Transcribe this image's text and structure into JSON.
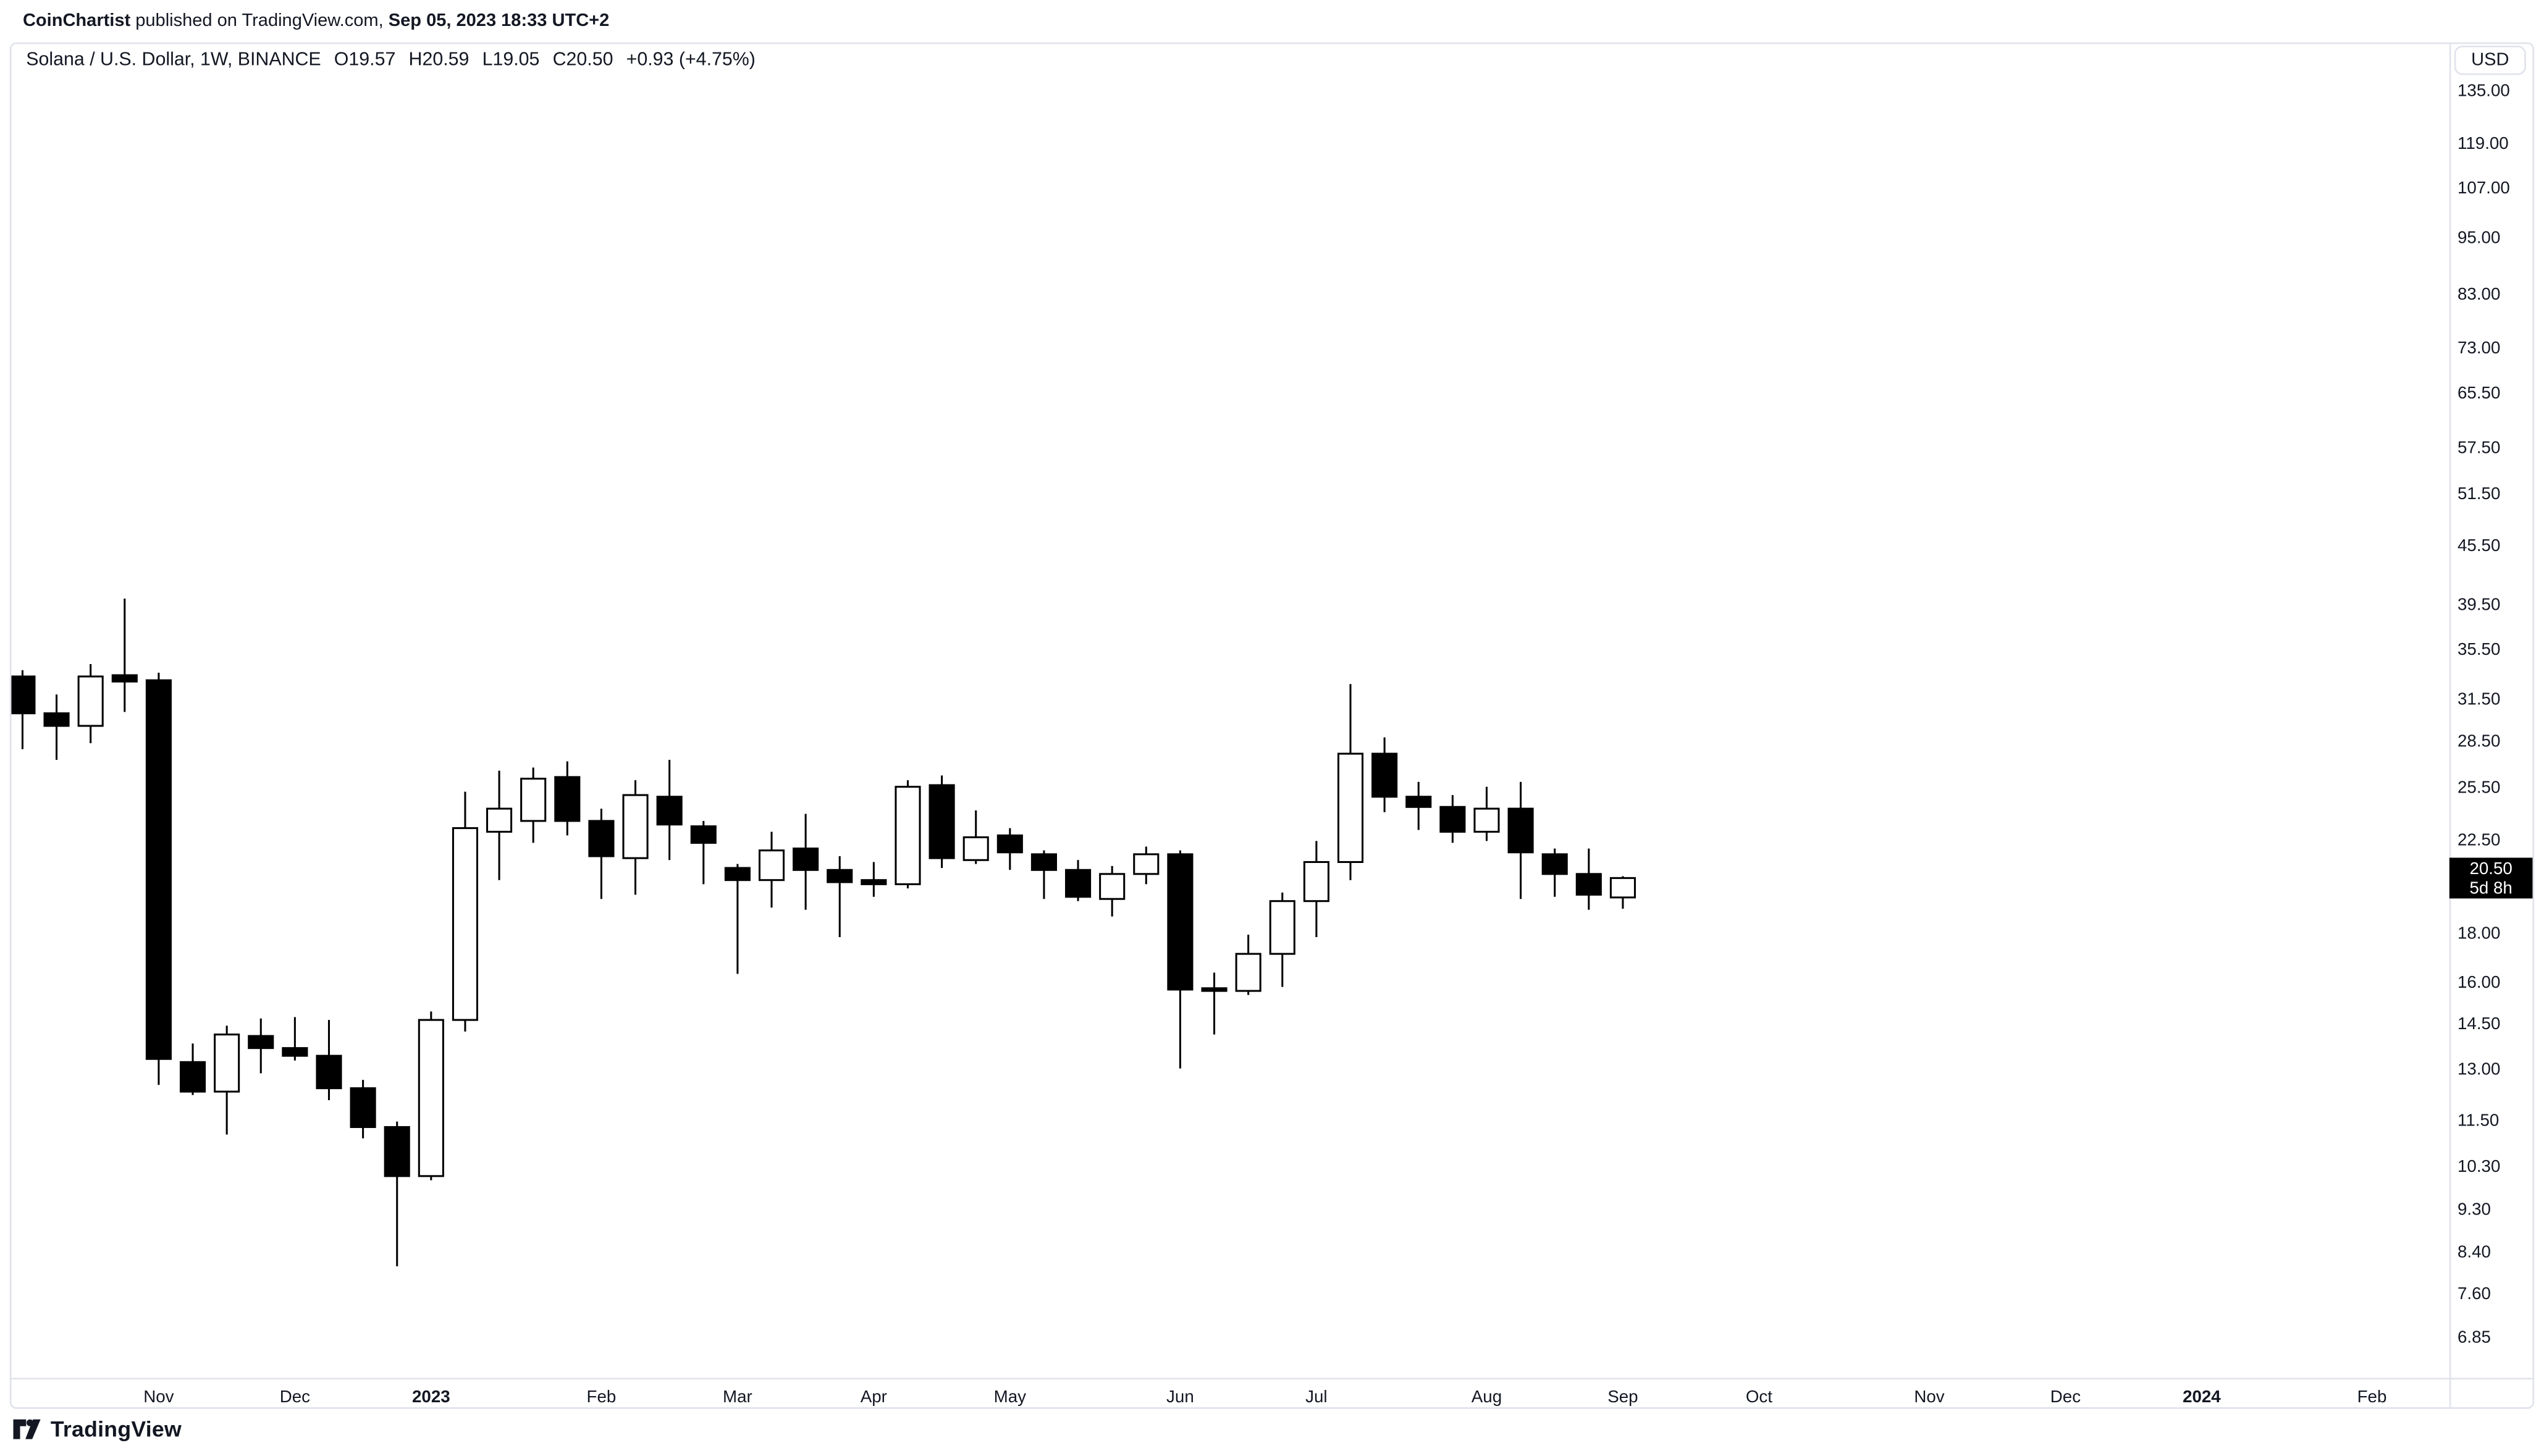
{
  "attribution": {
    "author": "CoinChartist",
    "middle": " published on TradingView.com, ",
    "date": "Sep 05, 2023 18:33 UTC+2"
  },
  "legend": {
    "symbol": "Solana / U.S. Dollar, 1W, BINANCE",
    "open": "O19.57",
    "high": "H20.59",
    "low": "L19.05",
    "close": "C20.50",
    "change": "+0.93 (+4.75%)"
  },
  "price_axis": {
    "currency": "USD",
    "labels": [
      {
        "label": "135.00",
        "value": 135.0
      },
      {
        "label": "119.00",
        "value": 119.0
      },
      {
        "label": "107.00",
        "value": 107.0
      },
      {
        "label": "95.00",
        "value": 95.0
      },
      {
        "label": "83.00",
        "value": 83.0
      },
      {
        "label": "73.00",
        "value": 73.0
      },
      {
        "label": "65.50",
        "value": 65.5
      },
      {
        "label": "57.50",
        "value": 57.5
      },
      {
        "label": "51.50",
        "value": 51.5
      },
      {
        "label": "45.50",
        "value": 45.5
      },
      {
        "label": "39.50",
        "value": 39.5
      },
      {
        "label": "35.50",
        "value": 35.5
      },
      {
        "label": "31.50",
        "value": 31.5
      },
      {
        "label": "28.50",
        "value": 28.5
      },
      {
        "label": "25.50",
        "value": 25.5
      },
      {
        "label": "22.50",
        "value": 22.5
      },
      {
        "label": "18.00",
        "value": 18.0
      },
      {
        "label": "16.00",
        "value": 16.0
      },
      {
        "label": "14.50",
        "value": 14.5
      },
      {
        "label": "13.00",
        "value": 13.0
      },
      {
        "label": "11.50",
        "value": 11.5
      },
      {
        "label": "10.30",
        "value": 10.3
      },
      {
        "label": "9.30",
        "value": 9.3
      },
      {
        "label": "8.40",
        "value": 8.4
      },
      {
        "label": "7.60",
        "value": 7.6
      },
      {
        "label": "6.85",
        "value": 6.85
      }
    ]
  },
  "price_badge": {
    "price": "20.50",
    "countdown": "5d 8h"
  },
  "time_axis": {
    "months": [
      {
        "label": "Nov",
        "week": 4,
        "bold": false
      },
      {
        "label": "Dec",
        "week": 8,
        "bold": false
      },
      {
        "label": "2023",
        "week": 12,
        "bold": true
      },
      {
        "label": "Feb",
        "week": 17,
        "bold": false
      },
      {
        "label": "Mar",
        "week": 21,
        "bold": false
      },
      {
        "label": "Apr",
        "week": 25,
        "bold": false
      },
      {
        "label": "May",
        "week": 29,
        "bold": false
      },
      {
        "label": "Jun",
        "week": 34,
        "bold": false
      },
      {
        "label": "Jul",
        "week": 38,
        "bold": false
      },
      {
        "label": "Aug",
        "week": 43,
        "bold": false
      },
      {
        "label": "Sep",
        "week": 47,
        "bold": false
      },
      {
        "label": "Oct",
        "week": 51,
        "bold": false
      },
      {
        "label": "Nov",
        "week": 56,
        "bold": false
      },
      {
        "label": "Dec",
        "week": 60,
        "bold": false
      },
      {
        "label": "2024",
        "week": 64,
        "bold": true
      },
      {
        "label": "Feb",
        "week": 69,
        "bold": false
      }
    ]
  },
  "chart_data": {
    "type": "candlestick",
    "title": "Solana / U.S. Dollar, 1W, BINANCE",
    "interval": "1W",
    "y_scale": "log",
    "y_range": [
      6.3,
      145
    ],
    "grid": false,
    "up_color": "#ffffff",
    "down_color": "#000000",
    "outline_color": "#000000",
    "series_ohlc": [
      [
        33.2,
        33.7,
        27.9,
        30.4
      ],
      [
        30.4,
        31.8,
        27.2,
        29.5
      ],
      [
        29.5,
        34.2,
        28.3,
        33.2
      ],
      [
        33.3,
        40.0,
        30.5,
        32.8
      ],
      [
        32.9,
        33.5,
        12.5,
        13.3
      ],
      [
        13.2,
        13.8,
        12.2,
        12.3
      ],
      [
        12.3,
        14.4,
        11.1,
        14.1
      ],
      [
        14.05,
        14.65,
        12.85,
        13.65
      ],
      [
        13.65,
        14.7,
        13.25,
        13.4
      ],
      [
        13.4,
        14.6,
        12.05,
        12.4
      ],
      [
        12.4,
        12.65,
        11.0,
        11.3
      ],
      [
        11.3,
        11.45,
        8.1,
        10.05
      ],
      [
        10.05,
        14.9,
        9.95,
        14.6
      ],
      [
        14.6,
        25.2,
        14.2,
        23.1
      ],
      [
        22.9,
        26.5,
        20.4,
        24.2
      ],
      [
        23.5,
        26.7,
        22.3,
        26.0
      ],
      [
        26.1,
        27.1,
        22.7,
        23.5
      ],
      [
        23.5,
        24.2,
        19.5,
        21.6
      ],
      [
        21.5,
        25.9,
        19.7,
        25.0
      ],
      [
        24.9,
        27.2,
        21.4,
        23.3
      ],
      [
        23.2,
        23.5,
        20.2,
        22.3
      ],
      [
        21.0,
        21.2,
        16.3,
        20.4
      ],
      [
        20.4,
        22.9,
        19.1,
        21.9
      ],
      [
        22.0,
        23.9,
        19.0,
        20.9
      ],
      [
        20.9,
        21.6,
        17.8,
        20.3
      ],
      [
        20.4,
        21.3,
        19.6,
        20.2
      ],
      [
        20.2,
        25.9,
        20.0,
        25.5
      ],
      [
        25.6,
        26.2,
        21.0,
        21.5
      ],
      [
        21.4,
        24.1,
        21.2,
        22.6
      ],
      [
        22.7,
        23.1,
        20.9,
        21.8
      ],
      [
        21.7,
        21.9,
        19.5,
        20.9
      ],
      [
        20.9,
        21.4,
        19.4,
        19.6
      ],
      [
        19.5,
        21.1,
        18.7,
        20.7
      ],
      [
        20.7,
        22.1,
        20.2,
        21.7
      ],
      [
        21.7,
        21.9,
        13.0,
        15.7
      ],
      [
        15.75,
        16.35,
        14.1,
        15.65
      ],
      [
        15.65,
        17.9,
        15.5,
        17.1
      ],
      [
        17.1,
        19.8,
        15.8,
        19.4
      ],
      [
        19.4,
        22.4,
        17.8,
        21.3
      ],
      [
        21.3,
        32.6,
        20.4,
        27.6
      ],
      [
        27.6,
        28.7,
        24.0,
        24.9
      ],
      [
        24.9,
        25.8,
        23.0,
        24.3
      ],
      [
        24.3,
        25.0,
        22.3,
        22.9
      ],
      [
        22.9,
        25.5,
        22.4,
        24.2
      ],
      [
        24.2,
        25.8,
        19.5,
        21.8
      ],
      [
        21.7,
        22.0,
        19.6,
        20.7
      ],
      [
        20.7,
        22.0,
        19.0,
        19.7
      ],
      [
        19.57,
        20.59,
        19.05,
        20.5
      ]
    ]
  },
  "footer": {
    "brand": "TradingView"
  },
  "colors": {
    "text": "#131722",
    "border": "#e0e3eb",
    "candle": "#000000",
    "badge_bg": "#000000",
    "badge_text": "#ffffff"
  }
}
